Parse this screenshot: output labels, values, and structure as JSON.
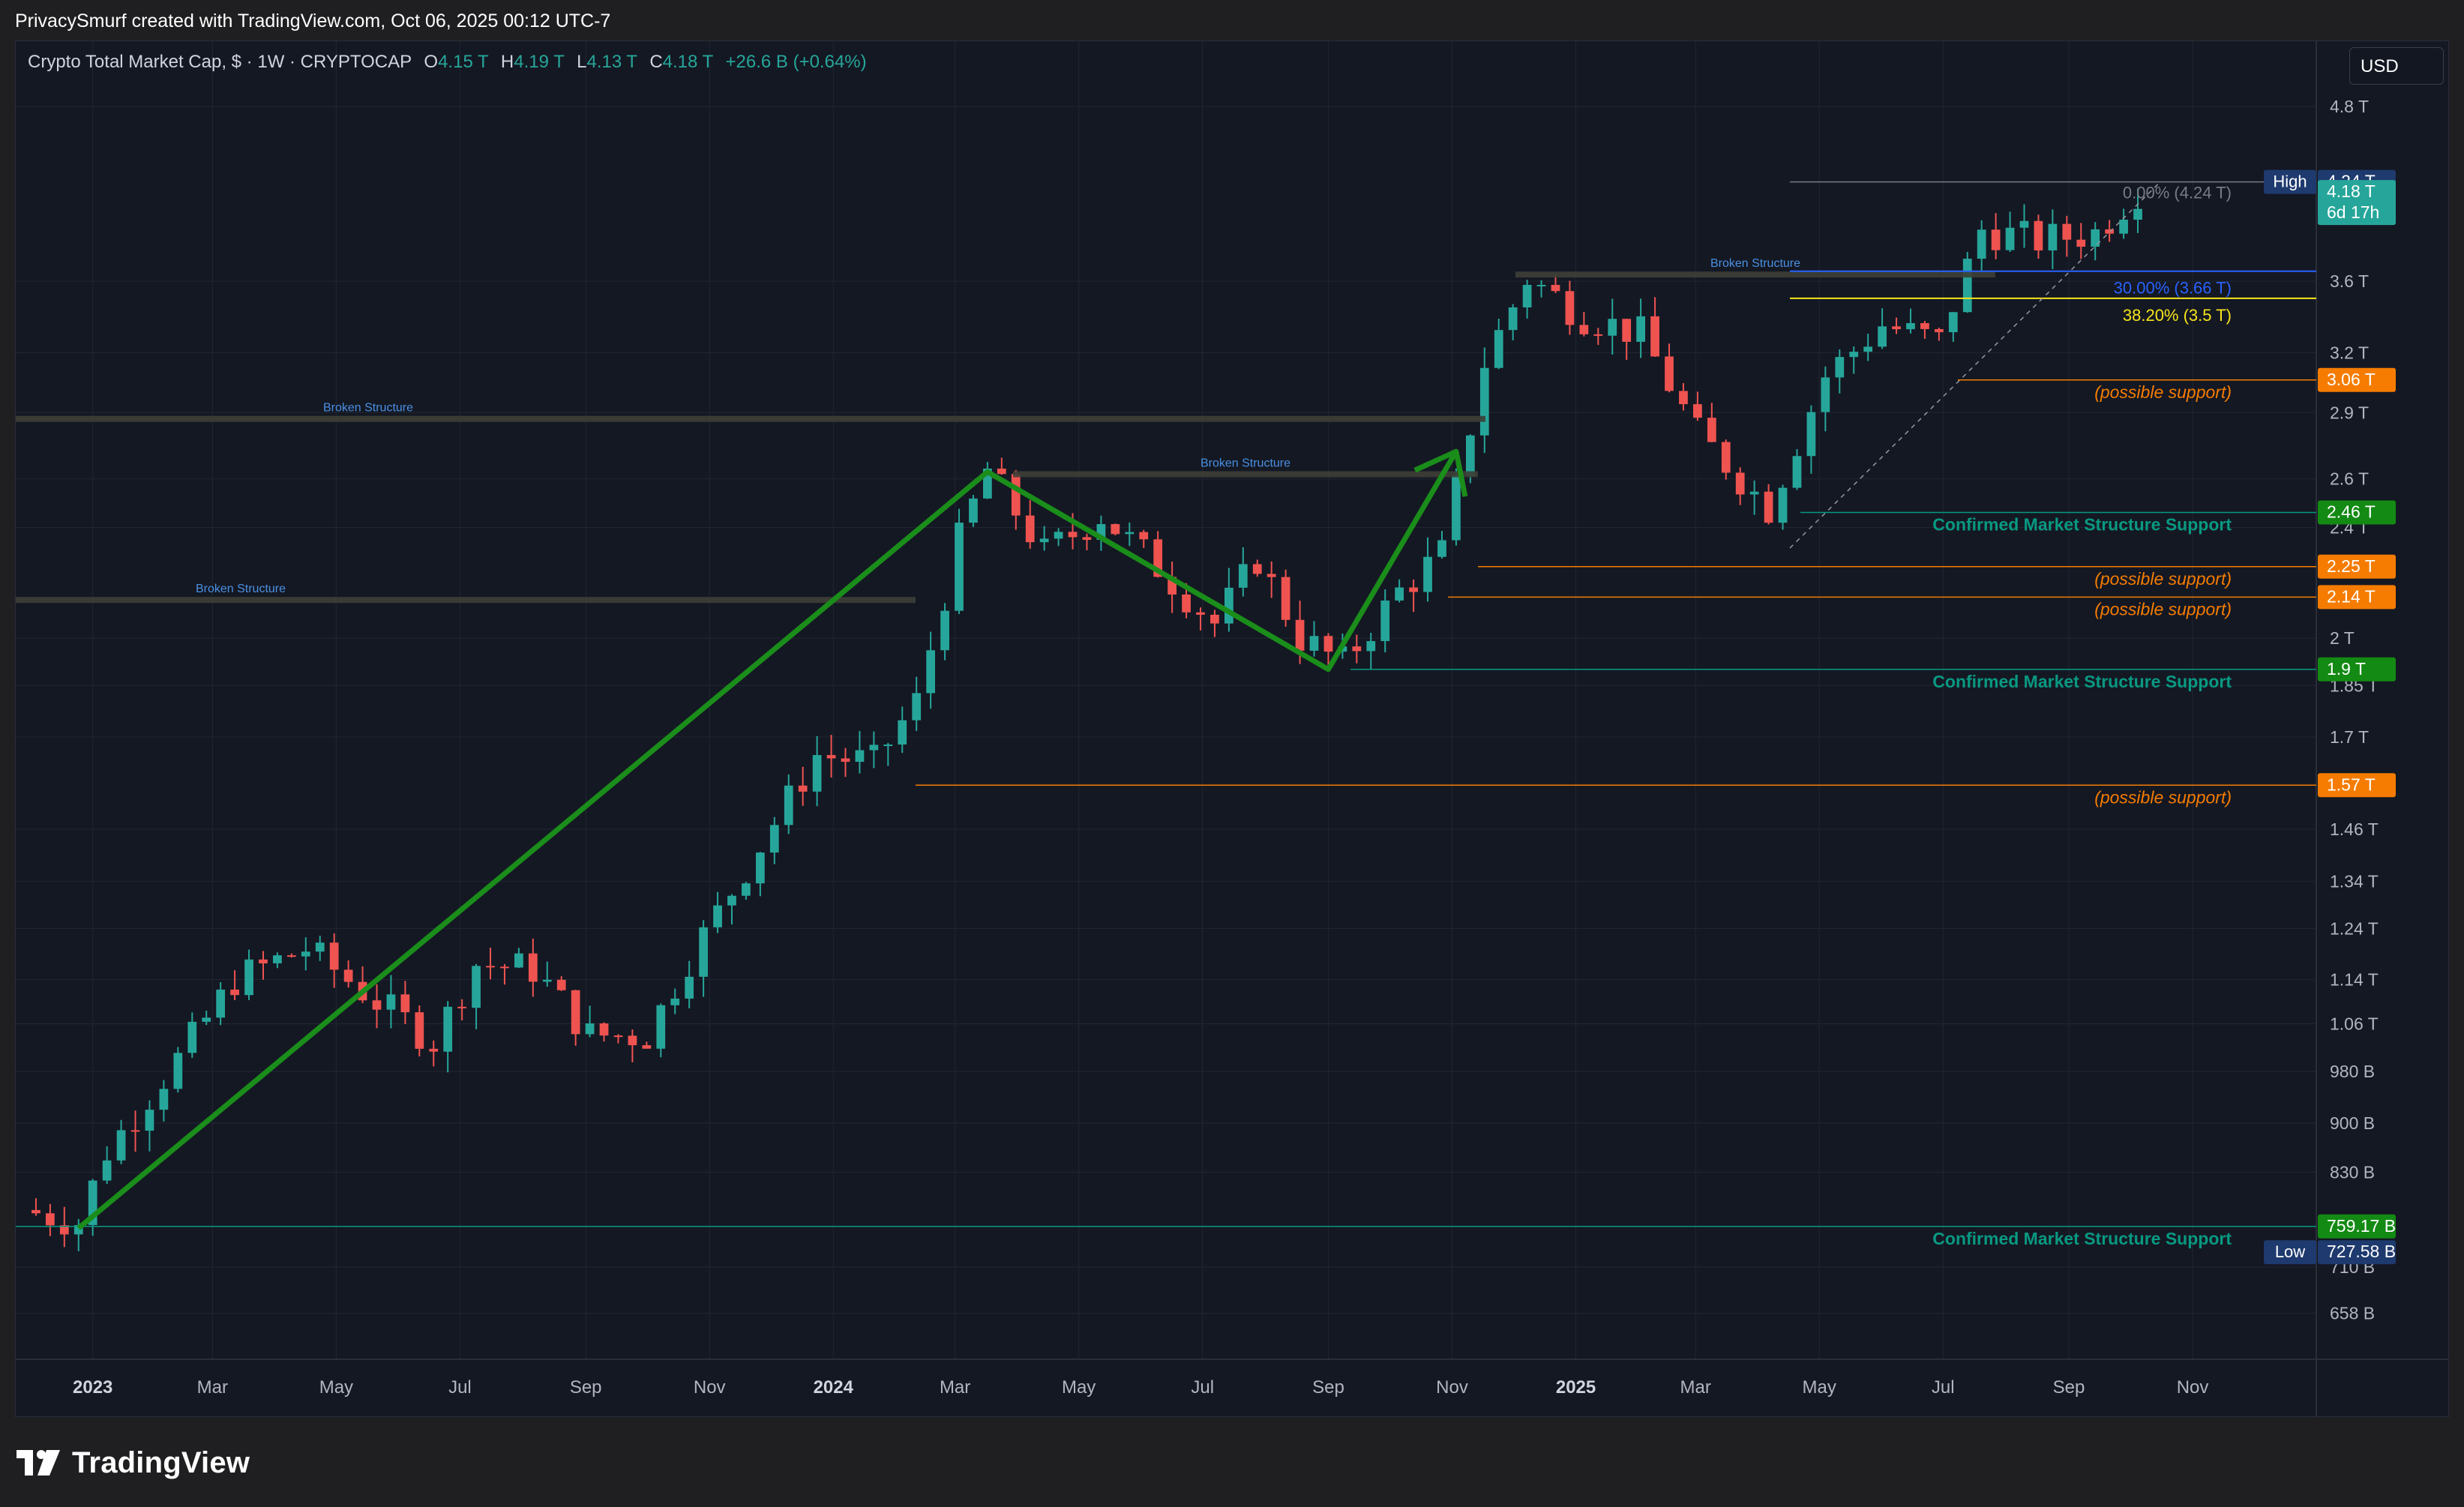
{
  "header": {
    "attribution": "PrivacySmurf created with TradingView.com, Oct 06, 2025 00:12 UTC-7"
  },
  "legend": {
    "symbol": "Crypto Total Market Cap, $ · 1W · CRYPTOCAP",
    "o_label": "O",
    "o_value": "4.15 T",
    "h_label": "H",
    "h_value": "4.19 T",
    "l_label": "L",
    "l_value": "4.13 T",
    "c_label": "C",
    "c_value": "4.18 T",
    "change": "+26.6 B (+0.64%)"
  },
  "currency_button": "USD",
  "footer": {
    "brand": "TradingView"
  },
  "colors": {
    "background": "#141823",
    "up": "#26a69a",
    "down": "#ef5350",
    "support_green": "#089981",
    "possible_support": "#f57c00",
    "fib_30": "#2962ff",
    "fib_38": "#f7e51b",
    "broken_structure": "#3d3f36",
    "trend_arrow": "#1a8d1a"
  },
  "chart_data": {
    "type": "candlestick",
    "title": "Crypto Total Market Cap, $ · 1W · CRYPTOCAP",
    "timeframe": "1W",
    "scale": "log",
    "grid": true,
    "ylim": [
      610,
      5100
    ],
    "y_ticks": [
      {
        "v": 4800,
        "label": "4.8 T"
      },
      {
        "v": 3600,
        "label": "3.6 T"
      },
      {
        "v": 3200,
        "label": "3.2 T"
      },
      {
        "v": 2900,
        "label": "2.9 T"
      },
      {
        "v": 2600,
        "label": "2.6 T"
      },
      {
        "v": 2400,
        "label": "2.4 T"
      },
      {
        "v": 2000,
        "label": "2 T"
      },
      {
        "v": 1850,
        "label": "1.85 T"
      },
      {
        "v": 1700,
        "label": "1.7 T"
      },
      {
        "v": 1460,
        "label": "1.46 T"
      },
      {
        "v": 1340,
        "label": "1.34 T"
      },
      {
        "v": 1240,
        "label": "1.24 T"
      },
      {
        "v": 1140,
        "label": "1.14 T"
      },
      {
        "v": 1060,
        "label": "1.06 T"
      },
      {
        "v": 980,
        "label": "980 B"
      },
      {
        "v": 900,
        "label": "900 B"
      },
      {
        "v": 830,
        "label": "830 B"
      },
      {
        "v": 710,
        "label": "710 B"
      },
      {
        "v": 658,
        "label": "658 B"
      }
    ],
    "x_ticks": [
      {
        "date": "2023-01-01",
        "label": "2023",
        "bold": true
      },
      {
        "date": "2023-03-01",
        "label": "Mar"
      },
      {
        "date": "2023-05-01",
        "label": "May"
      },
      {
        "date": "2023-07-01",
        "label": "Jul"
      },
      {
        "date": "2023-09-01",
        "label": "Sep"
      },
      {
        "date": "2023-11-01",
        "label": "Nov"
      },
      {
        "date": "2024-01-01",
        "label": "2024",
        "bold": true
      },
      {
        "date": "2024-03-01",
        "label": "Mar"
      },
      {
        "date": "2024-05-01",
        "label": "May"
      },
      {
        "date": "2024-07-01",
        "label": "Jul"
      },
      {
        "date": "2024-09-01",
        "label": "Sep"
      },
      {
        "date": "2024-11-01",
        "label": "Nov"
      },
      {
        "date": "2025-01-01",
        "label": "2025",
        "bold": true
      },
      {
        "date": "2025-03-01",
        "label": "Mar"
      },
      {
        "date": "2025-05-01",
        "label": "May"
      },
      {
        "date": "2025-07-01",
        "label": "Jul"
      },
      {
        "date": "2025-09-01",
        "label": "Sep"
      },
      {
        "date": "2025-11-01",
        "label": "Nov"
      }
    ],
    "x_range": [
      "2022-11-27",
      "2025-12-29"
    ],
    "closes": [
      {
        "date": "2022-11-27",
        "close": 780
      },
      {
        "date": "2022-12-25",
        "close": 765
      },
      {
        "date": "2023-01-08",
        "close": 860
      },
      {
        "date": "2023-02-12",
        "close": 1000
      },
      {
        "date": "2023-03-12",
        "close": 1140
      },
      {
        "date": "2023-04-16",
        "close": 1200
      },
      {
        "date": "2023-05-21",
        "close": 1100
      },
      {
        "date": "2023-06-18",
        "close": 1030
      },
      {
        "date": "2023-07-09",
        "close": 1170
      },
      {
        "date": "2023-08-06",
        "close": 1160
      },
      {
        "date": "2023-09-03",
        "close": 1040
      },
      {
        "date": "2023-10-01",
        "close": 1040
      },
      {
        "date": "2023-10-22",
        "close": 1180
      },
      {
        "date": "2023-11-19",
        "close": 1370
      },
      {
        "date": "2023-12-24",
        "close": 1650
      },
      {
        "date": "2024-01-21",
        "close": 1630
      },
      {
        "date": "2024-02-11",
        "close": 1800
      },
      {
        "date": "2024-03-03",
        "close": 2350
      },
      {
        "date": "2024-03-17",
        "close": 2640
      },
      {
        "date": "2024-04-14",
        "close": 2300
      },
      {
        "date": "2024-05-12",
        "close": 2450
      },
      {
        "date": "2024-06-09",
        "close": 2250
      },
      {
        "date": "2024-07-07",
        "close": 2050
      },
      {
        "date": "2024-07-28",
        "close": 2280
      },
      {
        "date": "2024-08-18",
        "close": 2000
      },
      {
        "date": "2024-09-08",
        "close": 1920
      },
      {
        "date": "2024-10-06",
        "close": 2160
      },
      {
        "date": "2024-10-27",
        "close": 2300
      },
      {
        "date": "2024-11-17",
        "close": 3150
      },
      {
        "date": "2024-12-08",
        "close": 3620
      },
      {
        "date": "2025-01-05",
        "close": 3400
      },
      {
        "date": "2025-02-02",
        "close": 3300
      },
      {
        "date": "2025-03-02",
        "close": 2800
      },
      {
        "date": "2025-04-06",
        "close": 2480
      },
      {
        "date": "2025-05-04",
        "close": 3080
      },
      {
        "date": "2025-06-01",
        "close": 3350
      },
      {
        "date": "2025-06-29",
        "close": 3260
      },
      {
        "date": "2025-07-20",
        "close": 3920
      },
      {
        "date": "2025-08-17",
        "close": 3850
      },
      {
        "date": "2025-09-14",
        "close": 3900
      },
      {
        "date": "2025-10-05",
        "close": 4180
      }
    ],
    "annotations": {
      "broken_structure_label": "Broken Structure",
      "possible_support_label": "(possible support)",
      "confirmed_support_label": "Confirmed Market Structure Support",
      "fib_0_label": "0.00% (4.24 T)",
      "fib_30_label": "30.00% (3.66 T)",
      "fib_38_label": "38.20% (3.5 T)"
    },
    "levels": [
      {
        "value": 4240,
        "tag": "4.24 T",
        "name": "High"
      },
      {
        "value": 4180,
        "tag": "4.18 T",
        "sub": "6d 17h"
      },
      {
        "value": 3060,
        "tag": "3.06 T"
      },
      {
        "value": 2460,
        "tag": "2.46 T"
      },
      {
        "value": 2250,
        "tag": "2.25 T"
      },
      {
        "value": 2140,
        "tag": "2.14 T"
      },
      {
        "value": 1900,
        "tag": "1.9 T"
      },
      {
        "value": 1570,
        "tag": "1.57 T"
      },
      {
        "value": 759.17,
        "tag": "759.17 B"
      },
      {
        "value": 727.58,
        "tag": "727.58 B",
        "name": "Low"
      }
    ],
    "swing_path": [
      {
        "date": "2022-12-25",
        "value": 757
      },
      {
        "date": "2024-03-17",
        "value": 2630
      },
      {
        "date": "2024-09-01",
        "value": 1900
      },
      {
        "date": "2024-11-03",
        "value": 2720
      }
    ]
  }
}
